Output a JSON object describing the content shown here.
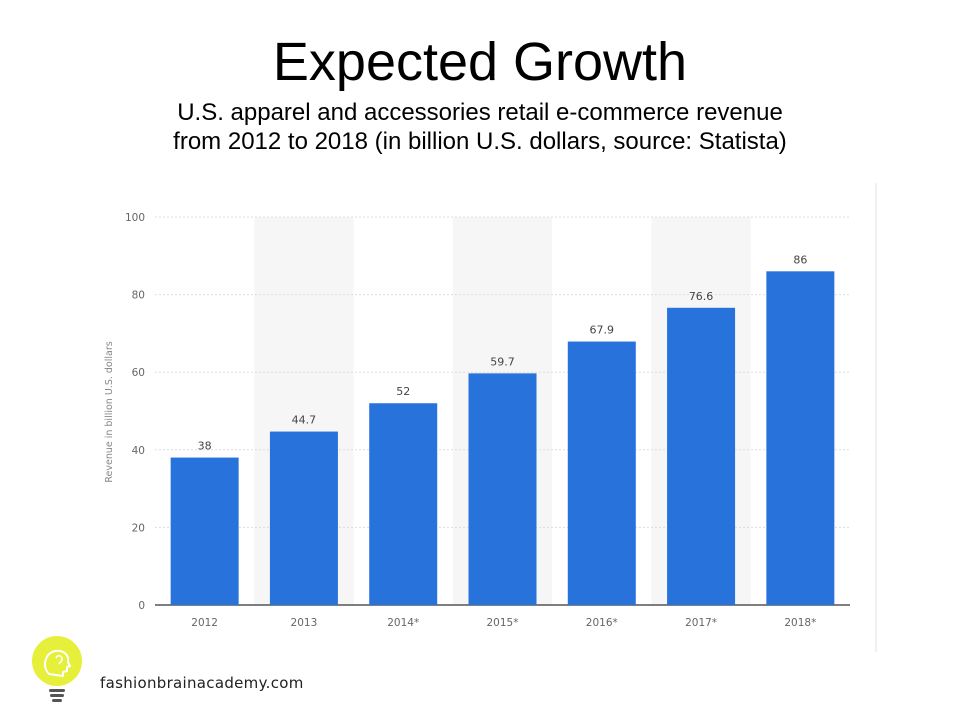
{
  "slide": {
    "title": "Expected Growth",
    "subtitle_line1": "U.S. apparel and accessories retail e-commerce revenue",
    "subtitle_line2": "from 2012 to 2018 (in billion U.S. dollars, source: Statista)"
  },
  "footer": {
    "url": "fashionbrainacademy.com",
    "logo_icon": "lightbulb-head-icon",
    "logo_color": "#e6ef3a"
  },
  "chart_data": {
    "type": "bar",
    "categories": [
      "2012",
      "2013",
      "2014*",
      "2015*",
      "2016*",
      "2017*",
      "2018*"
    ],
    "values": [
      38,
      44.7,
      52,
      59.7,
      67.9,
      76.6,
      86
    ],
    "value_labels": [
      "38",
      "44.7",
      "52",
      "59.7",
      "67.9",
      "76.6",
      "86"
    ],
    "ylabel": "Revenue in billion U.S. dollars",
    "xlabel": "",
    "ylim": [
      0,
      100
    ],
    "yticks": [
      0,
      20,
      40,
      60,
      80,
      100
    ],
    "grid": true,
    "bar_color": "#2872dc",
    "alt_band_color": "#f6f6f6"
  }
}
